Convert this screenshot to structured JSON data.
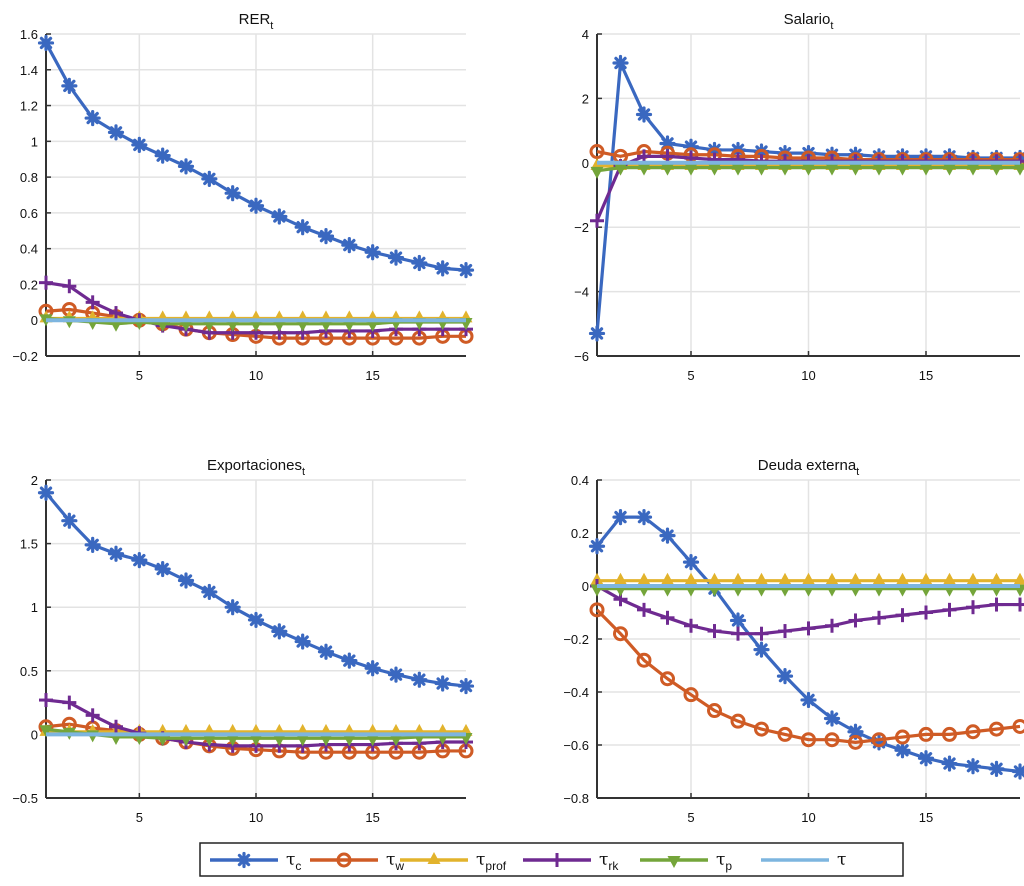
{
  "chart_data": [
    {
      "type": "line",
      "id": "rer",
      "title": "RER",
      "title_subscript": "t",
      "x": [
        1,
        2,
        3,
        4,
        5,
        6,
        7,
        8,
        9,
        10,
        11,
        12,
        13,
        14,
        15,
        16,
        17,
        18,
        19
      ],
      "xlim": [
        1,
        19
      ],
      "xticks": [
        5,
        10,
        15
      ],
      "xtick_labels": [
        "5",
        "10",
        "15"
      ],
      "ylim": [
        -0.2,
        1.6
      ],
      "yticks": [
        -0.2,
        0,
        0.2,
        0.4,
        0.6,
        0.8,
        1,
        1.2,
        1.4,
        1.6
      ],
      "ytick_labels": [
        "−0.2",
        "0",
        "0.2",
        "0.4",
        "0.6",
        "0.8",
        "1",
        "1.2",
        "1.4",
        "1.6"
      ],
      "grid": true,
      "series": [
        {
          "name": "tau_c",
          "values": [
            1.55,
            1.31,
            1.13,
            1.05,
            0.98,
            0.92,
            0.86,
            0.79,
            0.71,
            0.64,
            0.58,
            0.52,
            0.47,
            0.42,
            0.38,
            0.35,
            0.32,
            0.29,
            0.28
          ]
        },
        {
          "name": "tau_w",
          "values": [
            0.05,
            0.06,
            0.04,
            0.02,
            0.0,
            -0.02,
            -0.05,
            -0.07,
            -0.08,
            -0.09,
            -0.1,
            -0.1,
            -0.1,
            -0.1,
            -0.1,
            -0.1,
            -0.1,
            -0.09,
            -0.09
          ]
        },
        {
          "name": "tau_prof",
          "values": [
            0.01,
            0.01,
            0.01,
            0.01,
            0.01,
            0.01,
            0.01,
            0.01,
            0.01,
            0.01,
            0.01,
            0.01,
            0.01,
            0.01,
            0.01,
            0.01,
            0.01,
            0.01,
            0.01
          ]
        },
        {
          "name": "tau_rk",
          "values": [
            0.21,
            0.19,
            0.1,
            0.04,
            0.0,
            -0.03,
            -0.05,
            -0.07,
            -0.07,
            -0.07,
            -0.07,
            -0.07,
            -0.06,
            -0.06,
            -0.06,
            -0.05,
            -0.05,
            -0.05,
            -0.05
          ]
        },
        {
          "name": "tau_p",
          "values": [
            0.01,
            0.0,
            -0.01,
            -0.02,
            -0.01,
            -0.02,
            -0.02,
            -0.02,
            -0.02,
            -0.02,
            -0.02,
            -0.02,
            -0.02,
            -0.02,
            -0.02,
            -0.01,
            -0.01,
            -0.01,
            -0.01
          ]
        },
        {
          "name": "tau",
          "values": [
            0,
            0,
            0,
            0,
            0,
            0,
            0,
            0,
            0,
            0,
            0,
            0,
            0,
            0,
            0,
            0,
            0,
            0,
            0
          ]
        }
      ]
    },
    {
      "type": "line",
      "id": "salario",
      "title": "Salario",
      "title_subscript": "t",
      "x": [
        1,
        2,
        3,
        4,
        5,
        6,
        7,
        8,
        9,
        10,
        11,
        12,
        13,
        14,
        15,
        16,
        17,
        18,
        19
      ],
      "xlim": [
        1,
        19
      ],
      "xticks": [
        5,
        10,
        15
      ],
      "xtick_labels": [
        "5",
        "10",
        "15"
      ],
      "ylim": [
        -6,
        4
      ],
      "yticks": [
        -6,
        -4,
        -2,
        0,
        2,
        4
      ],
      "ytick_labels": [
        "−6",
        "−4",
        "−2",
        "0",
        "2",
        "4"
      ],
      "grid": true,
      "series": [
        {
          "name": "tau_c",
          "values": [
            -5.3,
            3.1,
            1.5,
            0.6,
            0.5,
            0.4,
            0.4,
            0.35,
            0.3,
            0.3,
            0.25,
            0.25,
            0.2,
            0.2,
            0.2,
            0.2,
            0.15,
            0.15,
            0.15
          ]
        },
        {
          "name": "tau_w",
          "values": [
            0.35,
            0.2,
            0.35,
            0.3,
            0.25,
            0.25,
            0.2,
            0.2,
            0.15,
            0.15,
            0.15,
            0.1,
            0.1,
            0.1,
            0.1,
            0.1,
            0.1,
            0.1,
            0.1
          ]
        },
        {
          "name": "tau_prof",
          "values": [
            -0.1,
            -0.1,
            -0.1,
            -0.1,
            -0.1,
            -0.1,
            -0.1,
            -0.1,
            -0.1,
            -0.1,
            -0.1,
            -0.1,
            -0.1,
            -0.1,
            -0.1,
            -0.1,
            -0.1,
            -0.1,
            -0.1
          ]
        },
        {
          "name": "tau_rk",
          "values": [
            -1.8,
            -0.1,
            0.2,
            0.2,
            0.15,
            0.1,
            0.1,
            0.05,
            0.05,
            0.05,
            0.05,
            0.05,
            0.05,
            0.05,
            0.05,
            0.05,
            0.05,
            0.05,
            0.05
          ]
        },
        {
          "name": "tau_p",
          "values": [
            -0.25,
            -0.15,
            -0.15,
            -0.15,
            -0.15,
            -0.15,
            -0.15,
            -0.15,
            -0.15,
            -0.15,
            -0.15,
            -0.15,
            -0.15,
            -0.15,
            -0.15,
            -0.15,
            -0.15,
            -0.15,
            -0.15
          ]
        },
        {
          "name": "tau",
          "values": [
            0,
            0,
            0,
            0,
            0,
            0,
            0,
            0,
            0,
            0,
            0,
            0,
            0,
            0,
            0,
            0,
            0,
            0,
            0
          ]
        }
      ]
    },
    {
      "type": "line",
      "id": "exportaciones",
      "title": "Exportaciones",
      "title_subscript": "t",
      "x": [
        1,
        2,
        3,
        4,
        5,
        6,
        7,
        8,
        9,
        10,
        11,
        12,
        13,
        14,
        15,
        16,
        17,
        18,
        19
      ],
      "xlim": [
        1,
        19
      ],
      "xticks": [
        5,
        10,
        15
      ],
      "xtick_labels": [
        "5",
        "10",
        "15"
      ],
      "ylim": [
        -0.5,
        2
      ],
      "yticks": [
        -0.5,
        0,
        0.5,
        1,
        1.5,
        2
      ],
      "ytick_labels": [
        "−0.5",
        "0",
        "0.5",
        "1",
        "1.5",
        "2"
      ],
      "grid": true,
      "series": [
        {
          "name": "tau_c",
          "values": [
            1.9,
            1.68,
            1.49,
            1.42,
            1.37,
            1.3,
            1.21,
            1.12,
            1.0,
            0.9,
            0.81,
            0.73,
            0.65,
            0.58,
            0.52,
            0.47,
            0.43,
            0.4,
            0.38
          ]
        },
        {
          "name": "tau_w",
          "values": [
            0.06,
            0.08,
            0.05,
            0.03,
            0.0,
            -0.03,
            -0.06,
            -0.09,
            -0.11,
            -0.12,
            -0.13,
            -0.14,
            -0.14,
            -0.14,
            -0.14,
            -0.14,
            -0.14,
            -0.13,
            -0.13
          ]
        },
        {
          "name": "tau_prof",
          "values": [
            0.02,
            0.02,
            0.02,
            0.02,
            0.02,
            0.02,
            0.02,
            0.02,
            0.02,
            0.02,
            0.02,
            0.02,
            0.02,
            0.02,
            0.02,
            0.02,
            0.02,
            0.02,
            0.02
          ]
        },
        {
          "name": "tau_rk",
          "values": [
            0.27,
            0.25,
            0.15,
            0.06,
            0.01,
            -0.03,
            -0.06,
            -0.08,
            -0.09,
            -0.09,
            -0.09,
            -0.09,
            -0.08,
            -0.08,
            -0.08,
            -0.07,
            -0.07,
            -0.06,
            -0.06
          ]
        },
        {
          "name": "tau_p",
          "values": [
            0.04,
            0.02,
            0.0,
            -0.02,
            -0.02,
            -0.03,
            -0.03,
            -0.03,
            -0.03,
            -0.03,
            -0.03,
            -0.03,
            -0.03,
            -0.03,
            -0.03,
            -0.03,
            -0.02,
            -0.02,
            -0.02
          ]
        },
        {
          "name": "tau",
          "values": [
            0,
            0,
            0,
            0,
            0,
            0,
            0,
            0,
            0,
            0,
            0,
            0,
            0,
            0,
            0,
            0,
            0,
            0,
            0
          ]
        }
      ]
    },
    {
      "type": "line",
      "id": "deuda",
      "title": "Deuda externa",
      "title_subscript": "t",
      "x": [
        1,
        2,
        3,
        4,
        5,
        6,
        7,
        8,
        9,
        10,
        11,
        12,
        13,
        14,
        15,
        16,
        17,
        18,
        19
      ],
      "xlim": [
        1,
        19
      ],
      "xticks": [
        5,
        10,
        15
      ],
      "xtick_labels": [
        "5",
        "10",
        "15"
      ],
      "ylim": [
        -0.8,
        0.4
      ],
      "yticks": [
        -0.8,
        -0.6,
        -0.4,
        -0.2,
        0,
        0.2,
        0.4
      ],
      "ytick_labels": [
        "−0.8",
        "−0.6",
        "−0.4",
        "−0.2",
        "0",
        "0.2",
        "0.4"
      ],
      "grid": true,
      "series": [
        {
          "name": "tau_c",
          "values": [
            0.15,
            0.26,
            0.26,
            0.19,
            0.09,
            -0.01,
            -0.13,
            -0.24,
            -0.34,
            -0.43,
            -0.5,
            -0.55,
            -0.59,
            -0.62,
            -0.65,
            -0.67,
            -0.68,
            -0.69,
            -0.7
          ]
        },
        {
          "name": "tau_w",
          "values": [
            -0.09,
            -0.18,
            -0.28,
            -0.35,
            -0.41,
            -0.47,
            -0.51,
            -0.54,
            -0.56,
            -0.58,
            -0.58,
            -0.59,
            -0.58,
            -0.57,
            -0.56,
            -0.56,
            -0.55,
            -0.54,
            -0.53
          ]
        },
        {
          "name": "tau_prof",
          "values": [
            0.02,
            0.02,
            0.02,
            0.02,
            0.02,
            0.02,
            0.02,
            0.02,
            0.02,
            0.02,
            0.02,
            0.02,
            0.02,
            0.02,
            0.02,
            0.02,
            0.02,
            0.02,
            0.02
          ]
        },
        {
          "name": "tau_rk",
          "values": [
            0.0,
            -0.05,
            -0.09,
            -0.12,
            -0.15,
            -0.17,
            -0.18,
            -0.18,
            -0.17,
            -0.16,
            -0.15,
            -0.13,
            -0.12,
            -0.11,
            -0.1,
            -0.09,
            -0.08,
            -0.07,
            -0.07
          ]
        },
        {
          "name": "tau_p",
          "values": [
            -0.01,
            -0.01,
            -0.01,
            -0.01,
            -0.01,
            -0.01,
            -0.01,
            -0.01,
            -0.01,
            -0.01,
            -0.01,
            -0.01,
            -0.01,
            -0.01,
            -0.01,
            -0.01,
            -0.01,
            -0.01,
            -0.01
          ]
        },
        {
          "name": "tau",
          "values": [
            0,
            0,
            0,
            0,
            0,
            0,
            0,
            0,
            0,
            0,
            0,
            0,
            0,
            0,
            0,
            0,
            0,
            0,
            0
          ]
        }
      ]
    }
  ],
  "legend": {
    "placement": "bottom-center",
    "entries": [
      {
        "key": "tau_c",
        "symbol": "τ",
        "subscript": "c",
        "color": "#3a68c0",
        "marker": "asterisk"
      },
      {
        "key": "tau_w",
        "symbol": "τ",
        "subscript": "w",
        "color": "#cf5b25",
        "marker": "circle"
      },
      {
        "key": "tau_prof",
        "symbol": "τ",
        "subscript": "prof",
        "color": "#e2b32c",
        "marker": "triangle-up"
      },
      {
        "key": "tau_rk",
        "symbol": "τ",
        "subscript": "rk",
        "color": "#6f2a91",
        "marker": "plus"
      },
      {
        "key": "tau_p",
        "symbol": "τ",
        "subscript": "p",
        "color": "#74a53a",
        "marker": "triangle-down"
      },
      {
        "key": "tau",
        "symbol": "τ",
        "subscript": "",
        "color": "#7db5df",
        "marker": "none"
      }
    ]
  }
}
